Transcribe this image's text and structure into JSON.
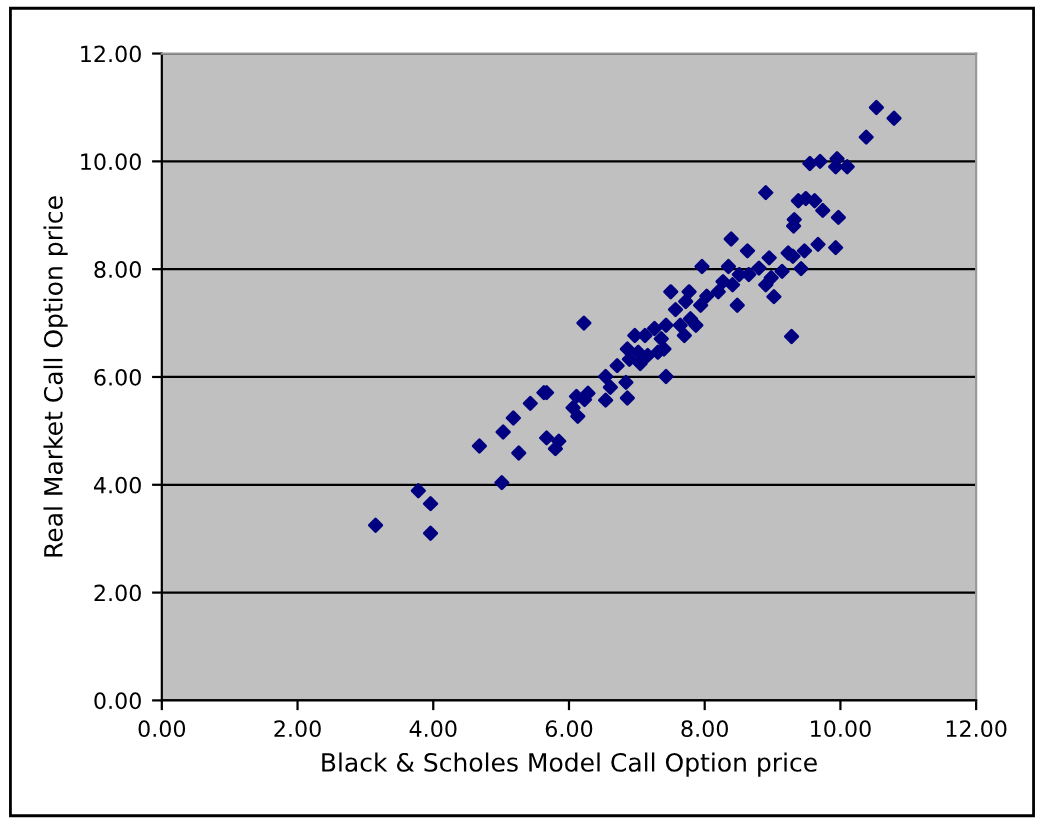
{
  "chart_data": {
    "type": "scatter",
    "xlabel": "Black & Scholes Model Call Option price",
    "ylabel": "Real Market Call Option price",
    "x": [
      3.15,
      3.78,
      3.96,
      3.96,
      4.68,
      5.01,
      5.03,
      5.18,
      5.26,
      5.43,
      5.63,
      5.67,
      5.67,
      5.8,
      5.85,
      6.06,
      6.11,
      6.13,
      6.22,
      6.23,
      6.28,
      6.54,
      6.54,
      6.61,
      6.71,
      6.84,
      6.86,
      6.86,
      6.89,
      6.97,
      7.02,
      7.05,
      7.12,
      7.16,
      7.26,
      7.31,
      7.36,
      7.4,
      7.43,
      7.43,
      7.5,
      7.57,
      7.64,
      7.7,
      7.72,
      7.77,
      7.79,
      7.87,
      7.94,
      7.96,
      8.03,
      8.2,
      8.27,
      8.35,
      8.39,
      8.41,
      8.48,
      8.51,
      8.63,
      8.65,
      8.8,
      8.9,
      8.9,
      8.95,
      8.98,
      9.02,
      9.14,
      9.23,
      9.28,
      9.3,
      9.31,
      9.32,
      9.38,
      9.42,
      9.47,
      9.49,
      9.55,
      9.62,
      9.67,
      9.7,
      9.74,
      9.93,
      9.93,
      9.95,
      9.97,
      10.1,
      10.38,
      10.53,
      10.79
    ],
    "series": [
      {
        "color": "#000080",
        "values": [
          3.25,
          3.89,
          3.65,
          3.1,
          4.72,
          4.04,
          4.98,
          5.24,
          4.59,
          5.51,
          5.71,
          5.71,
          4.87,
          4.67,
          4.81,
          5.43,
          5.64,
          5.27,
          7.0,
          5.58,
          5.7,
          6.01,
          5.57,
          5.81,
          6.21,
          5.9,
          5.61,
          6.52,
          6.33,
          6.77,
          6.46,
          6.25,
          6.77,
          6.4,
          6.9,
          6.46,
          6.71,
          6.52,
          6.96,
          6.01,
          7.58,
          7.25,
          6.96,
          6.77,
          7.4,
          7.58,
          7.08,
          6.96,
          7.33,
          8.05,
          7.5,
          7.58,
          7.77,
          8.05,
          8.56,
          7.71,
          7.33,
          7.9,
          8.34,
          7.9,
          8.02,
          9.42,
          7.71,
          8.21,
          7.84,
          7.49,
          7.96,
          8.3,
          6.75,
          8.24,
          8.8,
          8.92,
          9.27,
          8.01,
          8.34,
          9.31,
          9.96,
          9.27,
          8.46,
          10.0,
          9.09,
          8.4,
          9.9,
          10.05,
          8.96,
          9.9,
          10.45,
          11.0,
          10.8
        ]
      }
    ],
    "xlim": [
      0,
      12
    ],
    "ylim": [
      0,
      12
    ],
    "xticks": [
      {
        "value": 0,
        "label": "0.00"
      },
      {
        "value": 2,
        "label": "2.00"
      },
      {
        "value": 4,
        "label": "4.00"
      },
      {
        "value": 6,
        "label": "6.00"
      },
      {
        "value": 8,
        "label": "8.00"
      },
      {
        "value": 10,
        "label": "10.00"
      },
      {
        "value": 12,
        "label": "12.00"
      }
    ],
    "yticks": [
      {
        "value": 0,
        "label": "0.00"
      },
      {
        "value": 2,
        "label": "2.00"
      },
      {
        "value": 4,
        "label": "4.00"
      },
      {
        "value": 6,
        "label": "6.00"
      },
      {
        "value": 8,
        "label": "8.00"
      },
      {
        "value": 10,
        "label": "10.00"
      },
      {
        "value": 12,
        "label": "12.00"
      }
    ],
    "grid": "y",
    "marker": "diamond"
  }
}
